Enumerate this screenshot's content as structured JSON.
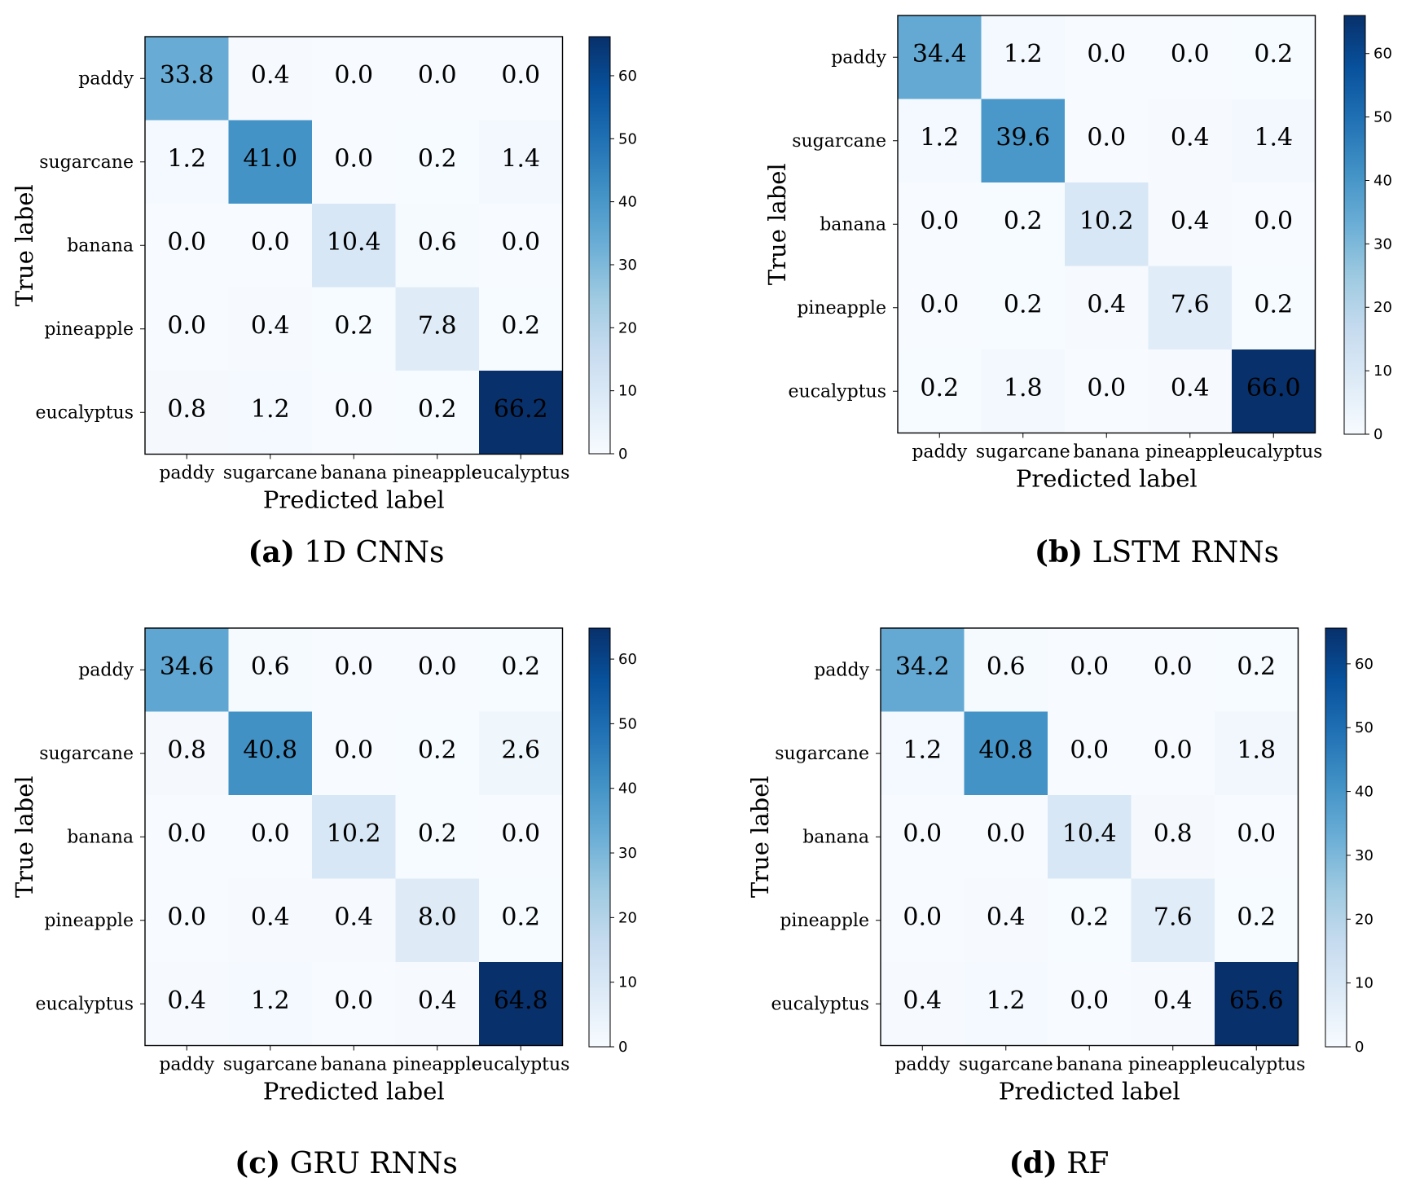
{
  "colormap": [
    "#f7fbff",
    "#deebf7",
    "#c6dbef",
    "#9ecae1",
    "#6baed6",
    "#4292c6",
    "#2171b5",
    "#08519c",
    "#08306b"
  ],
  "chart_data": [
    {
      "type": "heatmap",
      "panel": "a",
      "caption_letter": "(a)",
      "caption_text": "1D CNNs",
      "xlabel": "Predicted label",
      "ylabel": "True label",
      "categories": [
        "paddy",
        "sugarcane",
        "banana",
        "pineapple",
        "eucalyptus"
      ],
      "values": [
        [
          33.8,
          0.4,
          0.0,
          0.0,
          0.0
        ],
        [
          1.2,
          41.0,
          0.0,
          0.2,
          1.4
        ],
        [
          0.0,
          0.0,
          10.4,
          0.6,
          0.0
        ],
        [
          0.0,
          0.4,
          0.2,
          7.8,
          0.2
        ],
        [
          0.8,
          1.2,
          0.0,
          0.2,
          66.2
        ]
      ],
      "labels": [
        [
          "33.8",
          "0.4",
          "0.0",
          "0.0",
          "0.0"
        ],
        [
          "1.2",
          "41.0",
          "0.0",
          "0.2",
          "1.4"
        ],
        [
          "0.0",
          "0.0",
          "10.4",
          "0.6",
          "0.0"
        ],
        [
          "0.0",
          "0.4",
          "0.2",
          "7.8",
          "0.2"
        ],
        [
          "0.8",
          "1.2",
          "0.0",
          "0.2",
          "66.2"
        ]
      ],
      "colorbar_ticks": [
        "0",
        "10",
        "20",
        "30",
        "40",
        "50",
        "60"
      ],
      "vmin": 0,
      "vmax": 66.2
    },
    {
      "type": "heatmap",
      "panel": "b",
      "caption_letter": "(b)",
      "caption_text": "LSTM RNNs",
      "xlabel": "Predicted label",
      "ylabel": "True label",
      "categories": [
        "paddy",
        "sugarcane",
        "banana",
        "pineapple",
        "eucalyptus"
      ],
      "values": [
        [
          34.4,
          1.2,
          0.0,
          0.0,
          0.2
        ],
        [
          1.2,
          39.6,
          0.0,
          0.4,
          1.4
        ],
        [
          0.0,
          0.2,
          10.2,
          0.4,
          0.0
        ],
        [
          0.0,
          0.2,
          0.4,
          7.6,
          0.2
        ],
        [
          0.2,
          1.8,
          0.0,
          0.4,
          66.0
        ]
      ],
      "labels": [
        [
          "34.4",
          "1.2",
          "0.0",
          "0.0",
          "0.2"
        ],
        [
          "1.2",
          "39.6",
          "0.0",
          "0.4",
          "1.4"
        ],
        [
          "0.0",
          "0.2",
          "10.2",
          "0.4",
          "0.0"
        ],
        [
          "0.0",
          "0.2",
          "0.4",
          "7.6",
          "0.2"
        ],
        [
          "0.2",
          "1.8",
          "0.0",
          "0.4",
          "66.0"
        ]
      ],
      "colorbar_ticks": [
        "0",
        "10",
        "20",
        "30",
        "40",
        "50",
        "60"
      ],
      "vmin": 0,
      "vmax": 66.0
    },
    {
      "type": "heatmap",
      "panel": "c",
      "caption_letter": "(c)",
      "caption_text": "GRU RNNs",
      "xlabel": "Predicted label",
      "ylabel": "True label",
      "categories": [
        "paddy",
        "sugarcane",
        "banana",
        "pineapple",
        "eucalyptus"
      ],
      "values": [
        [
          34.6,
          0.6,
          0.0,
          0.0,
          0.2
        ],
        [
          0.8,
          40.8,
          0.0,
          0.2,
          2.6
        ],
        [
          0.0,
          0.0,
          10.2,
          0.2,
          0.0
        ],
        [
          0.0,
          0.4,
          0.4,
          8.0,
          0.2
        ],
        [
          0.4,
          1.2,
          0.0,
          0.4,
          64.8
        ]
      ],
      "labels": [
        [
          "34.6",
          "0.6",
          "0.0",
          "0.0",
          "0.2"
        ],
        [
          "0.8",
          "40.8",
          "0.0",
          "0.2",
          "2.6"
        ],
        [
          "0.0",
          "0.0",
          "10.2",
          "0.2",
          "0.0"
        ],
        [
          "0.0",
          "0.4",
          "0.4",
          "8.0",
          "0.2"
        ],
        [
          "0.4",
          "1.2",
          "0.0",
          "0.4",
          "64.8"
        ]
      ],
      "colorbar_ticks": [
        "0",
        "10",
        "20",
        "30",
        "40",
        "50",
        "60"
      ],
      "vmin": 0,
      "vmax": 64.8
    },
    {
      "type": "heatmap",
      "panel": "d",
      "caption_letter": "(d)",
      "caption_text": "RF",
      "xlabel": "Predicted label",
      "ylabel": "True label",
      "categories": [
        "paddy",
        "sugarcane",
        "banana",
        "pineapple",
        "eucalyptus"
      ],
      "values": [
        [
          34.2,
          0.6,
          0.0,
          0.0,
          0.2
        ],
        [
          1.2,
          40.8,
          0.0,
          0.0,
          1.8
        ],
        [
          0.0,
          0.0,
          10.4,
          0.8,
          0.0
        ],
        [
          0.0,
          0.4,
          0.2,
          7.6,
          0.2
        ],
        [
          0.4,
          1.2,
          0.0,
          0.4,
          65.6
        ]
      ],
      "labels": [
        [
          "34.2",
          "0.6",
          "0.0",
          "0.0",
          "0.2"
        ],
        [
          "1.2",
          "40.8",
          "0.0",
          "0.0",
          "1.8"
        ],
        [
          "0.0",
          "0.0",
          "10.4",
          "0.8",
          "0.0"
        ],
        [
          "0.0",
          "0.4",
          "0.2",
          "7.6",
          "0.2"
        ],
        [
          "0.4",
          "1.2",
          "0.0",
          "0.4",
          "65.6"
        ]
      ],
      "colorbar_ticks": [
        "0",
        "10",
        "20",
        "30",
        "40",
        "50",
        "60"
      ],
      "vmin": 0,
      "vmax": 65.6
    }
  ]
}
